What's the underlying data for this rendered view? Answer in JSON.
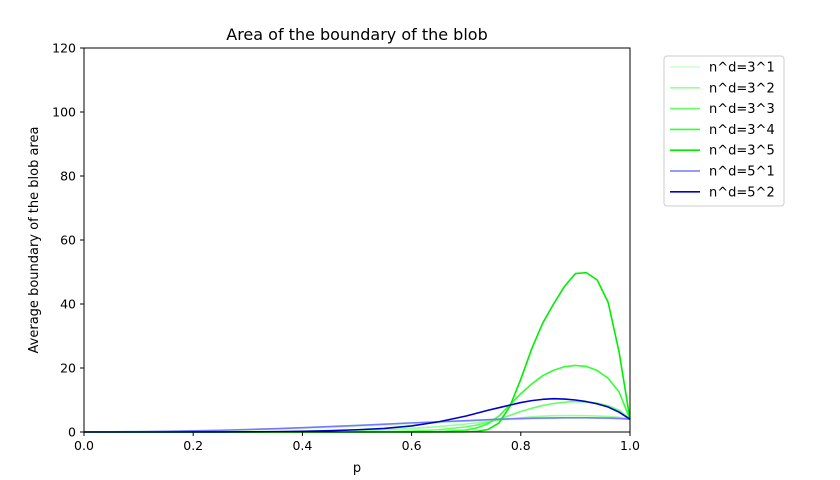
{
  "chart_data": {
    "type": "line",
    "title": "Area of the boundary of the blob",
    "xlabel": "p",
    "ylabel": "Average boundary of the blob area",
    "xlim": [
      0.0,
      1.0
    ],
    "ylim": [
      0,
      120
    ],
    "x_ticks": [
      "0.0",
      "0.2",
      "0.4",
      "0.6",
      "0.8",
      "1.0"
    ],
    "y_ticks": [
      "0",
      "20",
      "40",
      "60",
      "80",
      "100",
      "120"
    ],
    "grid": false,
    "legend_position": "outside-top-right",
    "x": [
      0.0,
      0.05,
      0.1,
      0.15,
      0.2,
      0.25,
      0.3,
      0.35,
      0.4,
      0.45,
      0.5,
      0.55,
      0.6,
      0.65,
      0.7,
      0.72,
      0.74,
      0.76,
      0.78,
      0.8,
      0.82,
      0.84,
      0.86,
      0.88,
      0.9,
      0.92,
      0.94,
      0.96,
      0.98,
      1.0
    ],
    "series": [
      {
        "name": "n^d=3^1",
        "color": "#ccffcc",
        "values": [
          0,
          0.04,
          0.1,
          0.18,
          0.3,
          0.45,
          0.62,
          0.85,
          1.1,
          1.4,
          1.75,
          2.1,
          2.5,
          2.9,
          3.3,
          3.45,
          3.6,
          3.75,
          3.85,
          4.0,
          4.1,
          4.2,
          4.25,
          4.3,
          4.35,
          4.35,
          4.3,
          4.25,
          4.15,
          4.0
        ]
      },
      {
        "name": "n^d=3^2",
        "color": "#99ff99",
        "values": [
          0,
          0,
          0,
          0,
          0.01,
          0.02,
          0.04,
          0.08,
          0.15,
          0.27,
          0.45,
          0.7,
          1.1,
          1.7,
          2.5,
          2.9,
          3.3,
          3.7,
          4.1,
          4.45,
          4.75,
          4.95,
          5.1,
          5.15,
          5.15,
          5.1,
          5.0,
          4.85,
          4.6,
          4.0
        ]
      },
      {
        "name": "n^d=3^3",
        "color": "#66ff66",
        "values": [
          0,
          0,
          0,
          0,
          0,
          0,
          0,
          0,
          0.01,
          0.02,
          0.05,
          0.12,
          0.3,
          0.7,
          1.6,
          2.2,
          3.0,
          4.0,
          5.2,
          6.4,
          7.4,
          8.3,
          8.9,
          9.3,
          9.5,
          9.4,
          9.0,
          8.2,
          6.8,
          4.0
        ]
      },
      {
        "name": "n^d=3^4",
        "color": "#33ff33",
        "values": [
          0,
          0,
          0,
          0,
          0,
          0,
          0,
          0,
          0,
          0,
          0,
          0,
          0.02,
          0.1,
          0.6,
          1.3,
          2.6,
          5.0,
          8.5,
          12.0,
          15.0,
          17.6,
          19.3,
          20.4,
          20.8,
          20.5,
          19.2,
          16.8,
          12.5,
          4.0
        ]
      },
      {
        "name": "n^d=3^5",
        "color": "#00ee00",
        "values": [
          0,
          0,
          0,
          0,
          0,
          0,
          0,
          0,
          0,
          0,
          0,
          0,
          0,
          0,
          0.05,
          0.2,
          0.8,
          2.8,
          8.0,
          16.5,
          26.0,
          34.0,
          40.0,
          45.5,
          49.5,
          49.8,
          47.5,
          40.5,
          25.0,
          4.0
        ]
      },
      {
        "name": "n^d=5^1",
        "color": "#7777ff",
        "values": [
          0,
          0.05,
          0.12,
          0.22,
          0.36,
          0.55,
          0.78,
          1.05,
          1.35,
          1.7,
          2.05,
          2.45,
          2.85,
          3.2,
          3.55,
          3.7,
          3.85,
          4.0,
          4.1,
          4.2,
          4.3,
          4.35,
          4.4,
          4.45,
          4.45,
          4.45,
          4.4,
          4.35,
          4.25,
          4.0
        ]
      },
      {
        "name": "n^d=5^2",
        "color": "#0000cc",
        "values": [
          0,
          0,
          0,
          0,
          0.01,
          0.02,
          0.05,
          0.1,
          0.2,
          0.4,
          0.7,
          1.1,
          1.9,
          3.2,
          5.0,
          5.9,
          6.8,
          7.6,
          8.4,
          9.2,
          9.8,
          10.2,
          10.4,
          10.3,
          10.0,
          9.5,
          8.8,
          7.8,
          6.2,
          4.0
        ]
      }
    ]
  }
}
